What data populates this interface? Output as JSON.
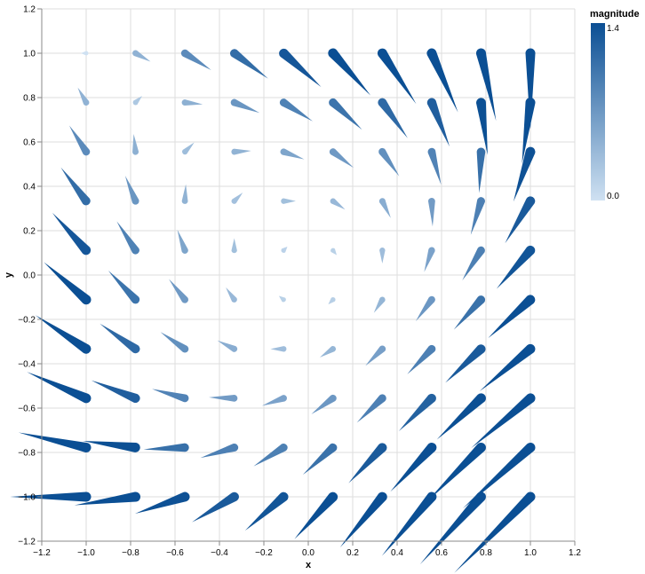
{
  "chart_data": {
    "type": "vector-field",
    "xlabel": "x",
    "ylabel": "y",
    "xlim": [
      -1.2,
      1.2
    ],
    "ylim": [
      -1.2,
      1.2
    ],
    "x_ticks": [
      -1.2,
      -1.0,
      -0.8,
      -0.6,
      -0.4,
      -0.2,
      0.0,
      0.2,
      0.4,
      0.6,
      0.8,
      1.0,
      1.2
    ],
    "y_ticks": [
      -1.2,
      -1.0,
      -0.8,
      -0.6,
      -0.4,
      -0.2,
      0.0,
      0.2,
      0.4,
      0.6,
      0.8,
      1.0,
      1.2
    ],
    "x_tick_labels": [
      "−1.2",
      "−1.0",
      "−0.8",
      "−0.6",
      "−0.4",
      "−0.2",
      "0.0",
      "0.2",
      "0.4",
      "0.6",
      "0.8",
      "1.0",
      "1.2"
    ],
    "y_tick_labels": [
      "−1.2",
      "−1.0",
      "−0.8",
      "−0.6",
      "−0.4",
      "−0.2",
      "0.0",
      "0.2",
      "0.4",
      "0.6",
      "0.8",
      "1.0",
      "1.2"
    ],
    "grid": true,
    "field": {
      "u": "x^2 - y",
      "v": "x + y^2",
      "scale_note": ""
    },
    "grid_points": {
      "x": [
        -1.0,
        -0.7778,
        -0.5556,
        -0.3333,
        -0.1111,
        0.1111,
        0.3333,
        0.5556,
        0.7778,
        1.0
      ],
      "y": [
        -1.0,
        -0.7778,
        -0.5556,
        -0.3333,
        -0.1111,
        0.1111,
        0.3333,
        0.5556,
        0.7778,
        1.0
      ]
    },
    "color_encoding": "magnitude",
    "colors": {
      "low": "#cfe1f2",
      "high": "#0b4f94"
    },
    "legend": {
      "title": "magnitude",
      "min_label": "0.0",
      "max_label": "1.4",
      "min": 0.0,
      "max": 1.4,
      "placement": "top-right"
    }
  }
}
